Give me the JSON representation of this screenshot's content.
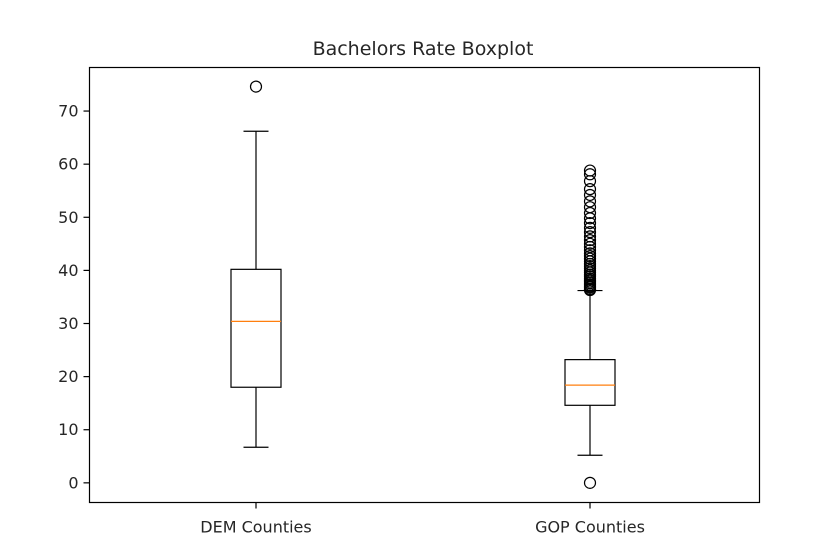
{
  "chart_data": {
    "type": "boxplot",
    "title": "Bachelors Rate Boxplot",
    "xlabel": "",
    "ylabel": "",
    "ylim": [
      -3.7,
      78.2
    ],
    "yticks": [
      0,
      10,
      20,
      30,
      40,
      50,
      60,
      70
    ],
    "grid": false,
    "categories": [
      "DEM Counties",
      "GOP Counties"
    ],
    "series": [
      {
        "whisker_low": 6.7,
        "q1": 18.0,
        "median": 30.4,
        "q3": 40.2,
        "whisker_high": 66.2,
        "outliers": [
          74.6
        ]
      },
      {
        "whisker_low": 5.2,
        "q1": 14.6,
        "median": 18.4,
        "q3": 23.2,
        "whisker_high": 36.2,
        "outliers": [
          0.0,
          36.3,
          36.5,
          36.8,
          37.0,
          37.3,
          37.6,
          37.9,
          38.2,
          38.5,
          38.9,
          39.2,
          39.6,
          40.0,
          40.4,
          40.8,
          41.2,
          41.7,
          42.2,
          42.7,
          43.2,
          43.8,
          44.4,
          45.0,
          45.7,
          46.4,
          47.2,
          48.0,
          48.9,
          49.8,
          50.8,
          51.9,
          53.0,
          54.2,
          55.3,
          56.8,
          58.1,
          58.8
        ]
      }
    ],
    "colors": {
      "box": "#000000",
      "median": "#ff7f0e",
      "axes": "#000000",
      "text": "#262626"
    }
  }
}
